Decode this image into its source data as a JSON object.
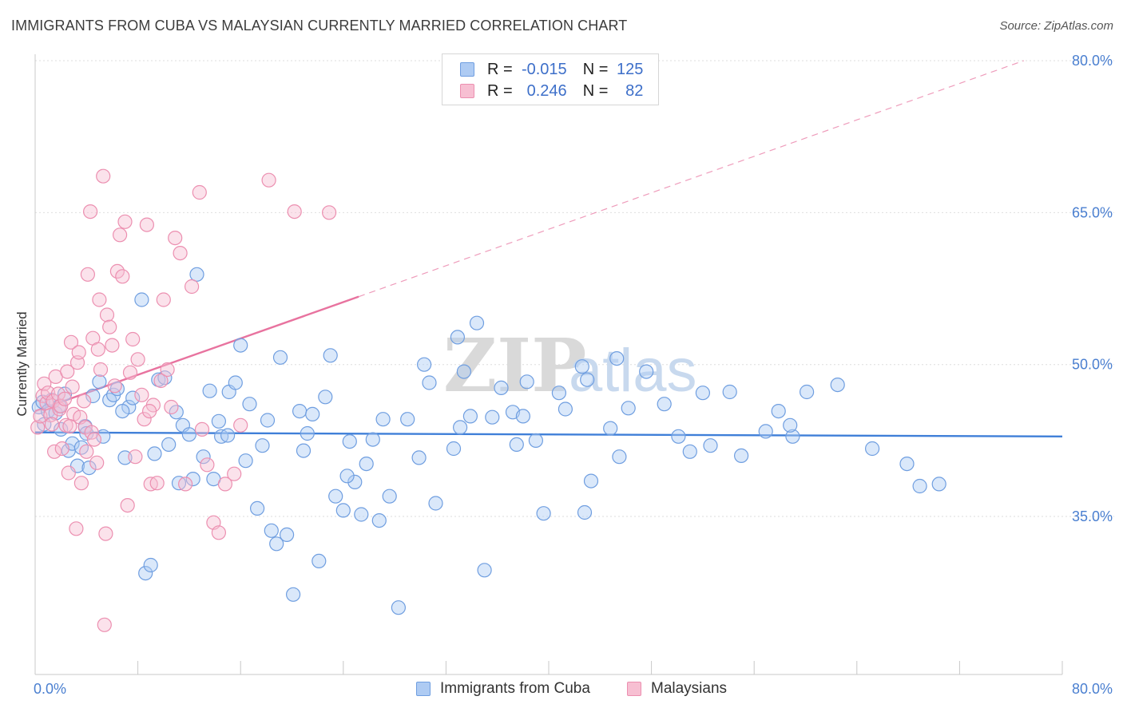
{
  "title": "IMMIGRANTS FROM CUBA VS MALAYSIAN CURRENTLY MARRIED CORRELATION CHART",
  "source": "Source: ZipAtlas.com",
  "watermark": {
    "zip": "ZIP",
    "atlas": "atlas"
  },
  "legend": {
    "r_label": "R =",
    "n_label": "N =",
    "rows": [
      {
        "r": "-0.015",
        "n": "125"
      },
      {
        "r": "0.246",
        "n": "82"
      }
    ]
  },
  "colors": {
    "blue": "#3f7fd8",
    "pink": "#e8739f",
    "blue_fill": "#aecbf3",
    "pink_fill": "#f7bfd2",
    "tick": "#4a7fd0"
  },
  "chart_data": {
    "type": "scatter",
    "title": "IMMIGRANTS FROM CUBA VS MALAYSIAN CURRENTLY MARRIED CORRELATION CHART",
    "xlabel": "",
    "ylabel": "Currently Married",
    "xlim": [
      0,
      80
    ],
    "ylim": [
      19.4,
      80
    ],
    "x_tick_labels": [
      "0.0%",
      "80.0%"
    ],
    "y_tick_labels": [
      "80.0%",
      "65.0%",
      "50.0%",
      "35.0%"
    ],
    "y_ticks": [
      80,
      65,
      50,
      35
    ],
    "grid": true,
    "legend_position": "top-center",
    "series": [
      {
        "name": "Immigrants from Cuba",
        "color": "#3f7fd8",
        "trend": {
          "x": [
            0,
            80
          ],
          "y": [
            43.3,
            42.9
          ]
        },
        "points": [
          [
            0.3,
            45.8
          ],
          [
            0.6,
            46.3
          ],
          [
            1.0,
            45.4
          ],
          [
            1.3,
            46.5
          ],
          [
            1.6,
            45.2
          ],
          [
            2.0,
            43.6
          ],
          [
            2.3,
            47.1
          ],
          [
            2.6,
            41.5
          ],
          [
            2.9,
            42.2
          ],
          [
            3.3,
            40.0
          ],
          [
            3.6,
            41.8
          ],
          [
            3.9,
            43.9
          ],
          [
            4.2,
            39.8
          ],
          [
            4.5,
            46.9
          ],
          [
            5.0,
            48.3
          ],
          [
            5.3,
            42.9
          ],
          [
            5.8,
            46.5
          ],
          [
            6.1,
            47.0
          ],
          [
            6.4,
            47.6
          ],
          [
            7.0,
            40.8
          ],
          [
            7.3,
            45.8
          ],
          [
            7.6,
            46.7
          ],
          [
            8.3,
            56.4
          ],
          [
            8.6,
            29.4
          ],
          [
            9.0,
            30.2
          ],
          [
            9.3,
            41.2
          ],
          [
            9.6,
            48.5
          ],
          [
            10.1,
            48.7
          ],
          [
            10.4,
            42.1
          ],
          [
            11.0,
            45.3
          ],
          [
            11.2,
            38.3
          ],
          [
            11.5,
            44.0
          ],
          [
            12.0,
            43.1
          ],
          [
            12.3,
            38.7
          ],
          [
            12.6,
            58.9
          ],
          [
            13.1,
            40.9
          ],
          [
            13.6,
            47.4
          ],
          [
            13.9,
            38.7
          ],
          [
            14.3,
            44.4
          ],
          [
            14.5,
            42.9
          ],
          [
            15.1,
            47.3
          ],
          [
            15.6,
            48.2
          ],
          [
            16.0,
            51.9
          ],
          [
            16.4,
            40.5
          ],
          [
            16.7,
            46.1
          ],
          [
            17.3,
            35.8
          ],
          [
            17.7,
            42.0
          ],
          [
            18.1,
            44.5
          ],
          [
            18.4,
            33.6
          ],
          [
            18.8,
            32.3
          ],
          [
            19.1,
            50.7
          ],
          [
            19.6,
            33.2
          ],
          [
            20.1,
            27.3
          ],
          [
            20.6,
            45.4
          ],
          [
            20.9,
            41.5
          ],
          [
            21.2,
            43.2
          ],
          [
            21.6,
            45.1
          ],
          [
            22.1,
            30.6
          ],
          [
            22.6,
            46.8
          ],
          [
            23.0,
            50.9
          ],
          [
            23.4,
            37.0
          ],
          [
            24.0,
            35.6
          ],
          [
            24.5,
            42.4
          ],
          [
            24.9,
            38.4
          ],
          [
            25.4,
            35.2
          ],
          [
            25.8,
            40.2
          ],
          [
            26.3,
            42.6
          ],
          [
            26.8,
            34.6
          ],
          [
            27.1,
            44.6
          ],
          [
            27.6,
            37.0
          ],
          [
            28.3,
            26.0
          ],
          [
            29.0,
            44.6
          ],
          [
            29.9,
            40.8
          ],
          [
            30.3,
            50.0
          ],
          [
            30.7,
            48.2
          ],
          [
            31.2,
            36.3
          ],
          [
            32.6,
            41.7
          ],
          [
            32.9,
            52.7
          ],
          [
            33.1,
            43.8
          ],
          [
            33.4,
            49.3
          ],
          [
            33.9,
            44.9
          ],
          [
            34.4,
            54.1
          ],
          [
            35.0,
            29.7
          ],
          [
            36.3,
            47.7
          ],
          [
            37.2,
            45.3
          ],
          [
            37.5,
            42.1
          ],
          [
            38.0,
            44.9
          ],
          [
            38.3,
            48.3
          ],
          [
            39.0,
            42.5
          ],
          [
            39.6,
            35.3
          ],
          [
            40.8,
            47.2
          ],
          [
            41.3,
            45.6
          ],
          [
            42.6,
            49.8
          ],
          [
            42.8,
            35.4
          ],
          [
            43.0,
            48.5
          ],
          [
            43.3,
            38.5
          ],
          [
            44.8,
            43.7
          ],
          [
            45.3,
            50.6
          ],
          [
            45.5,
            40.9
          ],
          [
            47.6,
            49.3
          ],
          [
            49.0,
            46.1
          ],
          [
            50.1,
            42.9
          ],
          [
            51.0,
            41.4
          ],
          [
            52.0,
            47.2
          ],
          [
            52.6,
            42.0
          ],
          [
            54.1,
            47.3
          ],
          [
            55.0,
            41.0
          ],
          [
            56.9,
            43.4
          ],
          [
            57.9,
            45.4
          ],
          [
            59.0,
            42.9
          ],
          [
            60.1,
            47.3
          ],
          [
            62.5,
            48.0
          ],
          [
            65.2,
            41.7
          ],
          [
            67.9,
            40.2
          ],
          [
            68.9,
            38.0
          ],
          [
            70.4,
            38.2
          ],
          [
            0.7,
            44.1
          ],
          [
            1.9,
            45.9
          ],
          [
            4.0,
            43.2
          ],
          [
            6.8,
            45.4
          ],
          [
            15.0,
            43.0
          ],
          [
            24.3,
            39.0
          ],
          [
            35.6,
            44.8
          ],
          [
            46.2,
            45.7
          ],
          [
            58.8,
            44.0
          ]
        ]
      },
      {
        "name": "Malaysians",
        "color": "#e8739f",
        "trend": {
          "x": [
            0,
            25.2
          ],
          "y": [
            45.4,
            56.7
          ]
        },
        "trend_extension": {
          "x": [
            25.2,
            77
          ],
          "y": [
            56.7,
            80
          ]
        },
        "points": [
          [
            0.2,
            43.8
          ],
          [
            0.4,
            44.9
          ],
          [
            0.6,
            46.9
          ],
          [
            0.7,
            48.1
          ],
          [
            0.9,
            46.2
          ],
          [
            1.0,
            47.2
          ],
          [
            1.2,
            45.0
          ],
          [
            1.3,
            44.1
          ],
          [
            1.4,
            46.4
          ],
          [
            1.5,
            41.4
          ],
          [
            1.6,
            48.8
          ],
          [
            1.8,
            47.1
          ],
          [
            1.9,
            45.6
          ],
          [
            2.0,
            45.9
          ],
          [
            2.1,
            41.7
          ],
          [
            2.3,
            46.6
          ],
          [
            2.4,
            44.0
          ],
          [
            2.5,
            49.3
          ],
          [
            2.6,
            39.3
          ],
          [
            2.8,
            52.2
          ],
          [
            2.9,
            47.8
          ],
          [
            3.0,
            45.1
          ],
          [
            3.2,
            33.8
          ],
          [
            3.3,
            50.2
          ],
          [
            3.4,
            51.2
          ],
          [
            3.5,
            44.8
          ],
          [
            3.6,
            38.3
          ],
          [
            3.8,
            46.4
          ],
          [
            3.9,
            43.8
          ],
          [
            4.0,
            41.4
          ],
          [
            4.1,
            58.9
          ],
          [
            4.3,
            65.1
          ],
          [
            4.4,
            43.3
          ],
          [
            4.5,
            52.6
          ],
          [
            4.6,
            42.6
          ],
          [
            4.8,
            40.3
          ],
          [
            4.9,
            51.5
          ],
          [
            5.0,
            56.4
          ],
          [
            5.1,
            49.5
          ],
          [
            5.3,
            68.6
          ],
          [
            5.5,
            33.3
          ],
          [
            5.6,
            54.9
          ],
          [
            5.8,
            53.7
          ],
          [
            6.0,
            51.9
          ],
          [
            6.2,
            47.9
          ],
          [
            6.4,
            59.2
          ],
          [
            6.6,
            62.8
          ],
          [
            6.8,
            58.7
          ],
          [
            7.0,
            64.1
          ],
          [
            7.2,
            36.1
          ],
          [
            7.4,
            49.2
          ],
          [
            7.6,
            52.5
          ],
          [
            7.8,
            40.9
          ],
          [
            8.0,
            50.5
          ],
          [
            8.3,
            47.0
          ],
          [
            8.5,
            44.6
          ],
          [
            8.7,
            63.8
          ],
          [
            9.0,
            38.2
          ],
          [
            9.2,
            46.0
          ],
          [
            9.5,
            38.3
          ],
          [
            9.8,
            48.4
          ],
          [
            10.0,
            56.4
          ],
          [
            10.3,
            49.5
          ],
          [
            10.6,
            45.8
          ],
          [
            10.9,
            62.5
          ],
          [
            11.3,
            61.0
          ],
          [
            11.7,
            38.2
          ],
          [
            12.2,
            57.7
          ],
          [
            12.8,
            67.0
          ],
          [
            13.0,
            43.6
          ],
          [
            13.4,
            40.1
          ],
          [
            13.9,
            34.4
          ],
          [
            14.3,
            33.4
          ],
          [
            14.8,
            38.2
          ],
          [
            15.5,
            39.2
          ],
          [
            16.0,
            44.0
          ],
          [
            18.2,
            68.2
          ],
          [
            20.2,
            65.1
          ],
          [
            22.9,
            65.0
          ],
          [
            5.4,
            24.3
          ],
          [
            2.7,
            43.9
          ],
          [
            8.9,
            45.4
          ]
        ]
      }
    ]
  },
  "bottom_legend": [
    "Immigrants from Cuba",
    "Malaysians"
  ]
}
